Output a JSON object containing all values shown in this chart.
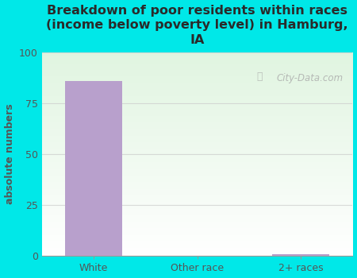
{
  "title": "Breakdown of poor residents within races\n(income below poverty level) in Hamburg,\nIA",
  "categories": [
    "White",
    "Other race",
    "2+ races"
  ],
  "values": [
    86,
    0,
    1
  ],
  "bar_color": "#b8a0cc",
  "ylabel": "absolute numbers",
  "ylim": [
    0,
    100
  ],
  "yticks": [
    0,
    25,
    50,
    75,
    100
  ],
  "background_color": "#00e8e8",
  "title_color": "#2a2a2a",
  "axis_label_color": "#555555",
  "tick_label_color": "#555555",
  "watermark": "City-Data.com",
  "title_fontsize": 11.5,
  "bar_width": 0.55,
  "grid_color": "#cccccc",
  "plot_bg_color_top_left": "#c8e8c8",
  "plot_bg_color_bottom_right": "#f5fff5"
}
